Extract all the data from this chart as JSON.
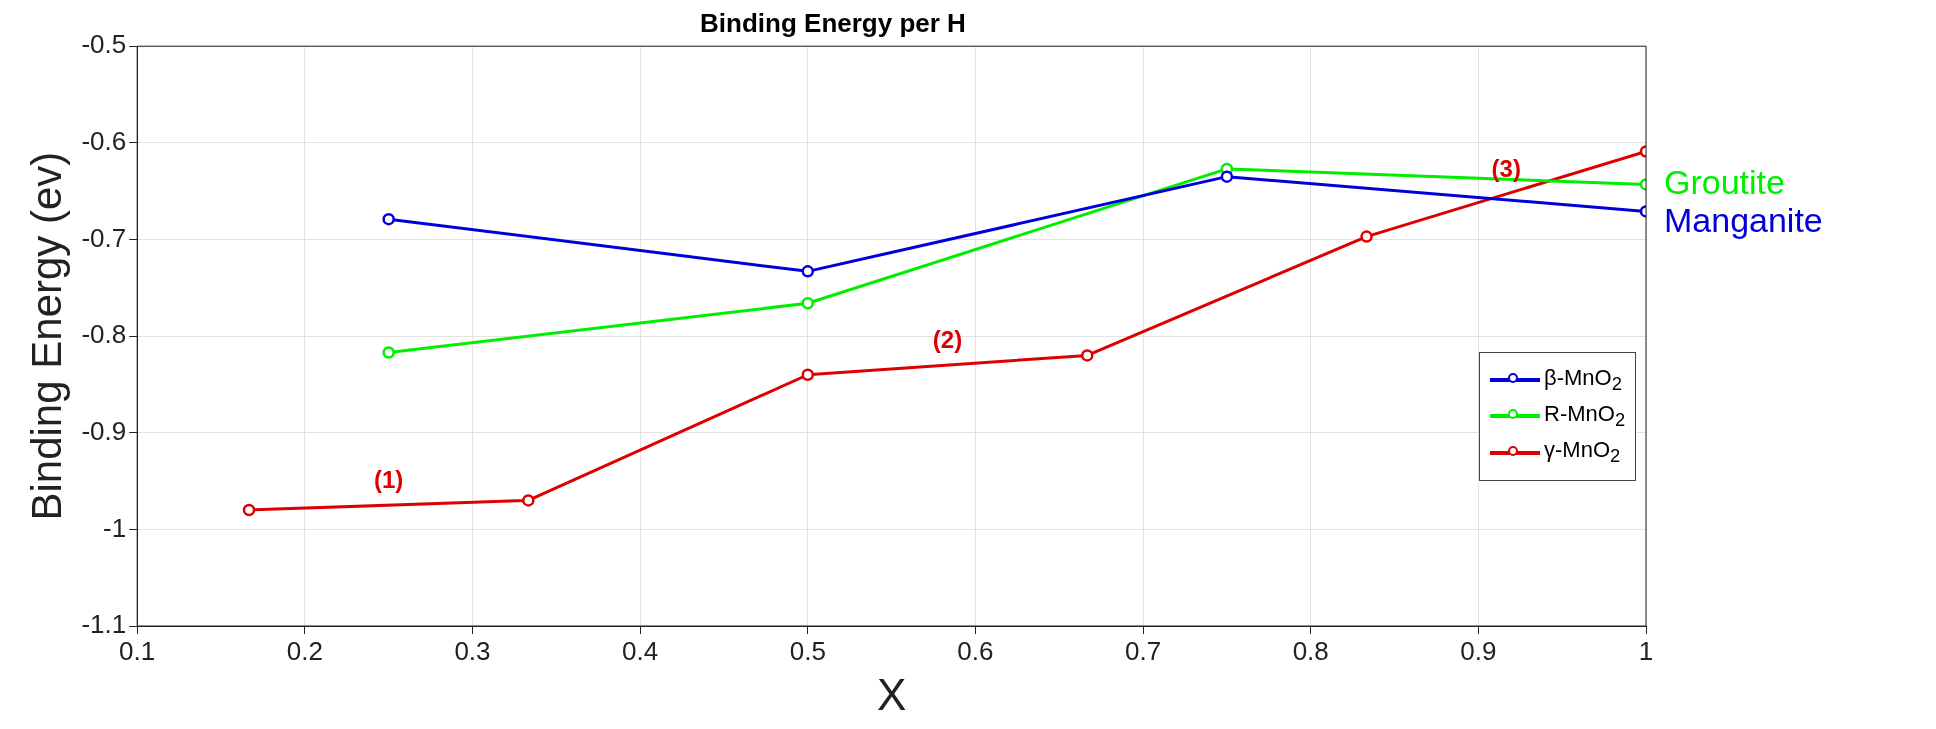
{
  "chart_data": {
    "type": "line",
    "title": "Binding Energy per H",
    "xlabel": "X",
    "ylabel": "Binding Energy (ev)",
    "series": [
      {
        "name": "β-MnO$_{2}$",
        "color": "#0000dd",
        "x": [
          0.25,
          0.5,
          0.75,
          1
        ],
        "values": [
          -0.679,
          -0.733,
          -0.635,
          -0.671
        ]
      },
      {
        "name": "R-MnO$_{2}$",
        "color": "#00ee00",
        "x": [
          0.25,
          0.5,
          0.75,
          1
        ],
        "values": [
          -0.817,
          -0.766,
          -0.627,
          -0.643
        ]
      },
      {
        "name": "γ-MnO$_{2}$",
        "color": "#dd0000",
        "x": [
          0.1667,
          0.3333,
          0.5,
          0.6667,
          0.8333,
          1
        ],
        "values": [
          -0.98,
          -0.97,
          -0.84,
          -0.82,
          -0.697,
          -0.609
        ]
      }
    ],
    "annotations": [
      "(1)",
      "(2)",
      "(3)",
      {
        "text": "Groutite",
        "x": 1,
        "y": -0.643
      },
      {
        "text": "Manganite",
        "x": 1,
        "y": -0.671
      }
    ],
    "xlim": [
      0.1,
      1
    ],
    "xticks": [
      0.1,
      0.2,
      0.3,
      0.4,
      0.5,
      0.6,
      0.7,
      0.8,
      0.9,
      1
    ],
    "ylim": [
      -1.1,
      -0.5
    ],
    "yticks": [
      -1.1,
      -1,
      -0.9,
      -0.8,
      -0.7,
      -0.6,
      -0.5
    ],
    "grid": true,
    "legend": "right",
    "marker": "circle",
    "line_style": "solid"
  }
}
